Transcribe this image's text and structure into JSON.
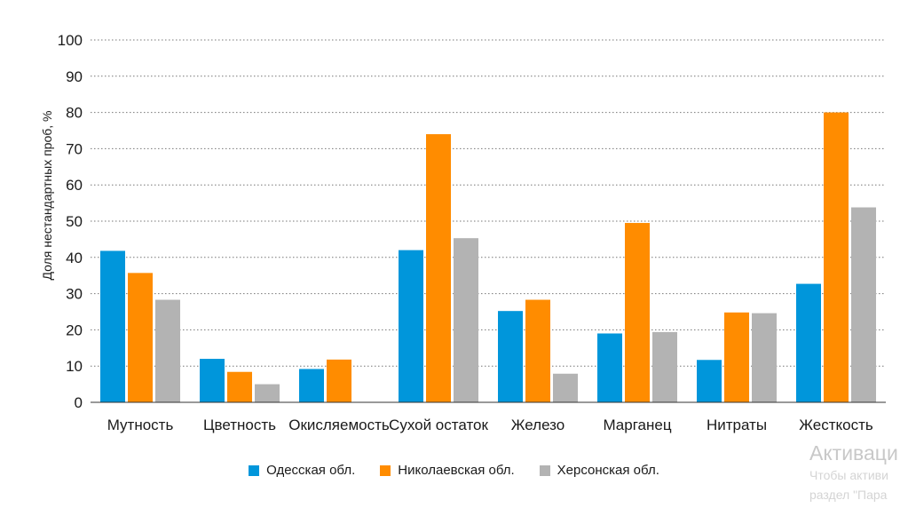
{
  "chart_data": {
    "type": "bar",
    "ylabel": "Доля нестандартных проб, %",
    "ylim": [
      0,
      100
    ],
    "yticks": [
      0,
      10,
      20,
      30,
      40,
      50,
      60,
      70,
      80,
      90,
      100
    ],
    "grid": true,
    "legend_position": "bottom",
    "categories": [
      "Мутность",
      "Цветность",
      "Окисляемость",
      "Сухой остаток",
      "Железо",
      "Марганец",
      "Нитраты",
      "Жесткость"
    ],
    "series": [
      {
        "name": "Одесская обл.",
        "color": "#0096db",
        "values": [
          41.8,
          12,
          9.2,
          42,
          25.2,
          19,
          11.7,
          32.7
        ]
      },
      {
        "name": "Николаевская обл.",
        "color": "#ff8c00",
        "values": [
          35.7,
          8.4,
          11.8,
          74,
          28.3,
          49.5,
          24.8,
          80
        ]
      },
      {
        "name": "Херсонская обл.",
        "color": "#b3b3b3",
        "values": [
          28.3,
          5,
          null,
          45.3,
          7.9,
          19.4,
          24.6,
          53.8
        ]
      }
    ]
  },
  "watermark": {
    "title": "Активаци",
    "line1": "Чтобы активи",
    "line2": "раздел \"Пара"
  }
}
